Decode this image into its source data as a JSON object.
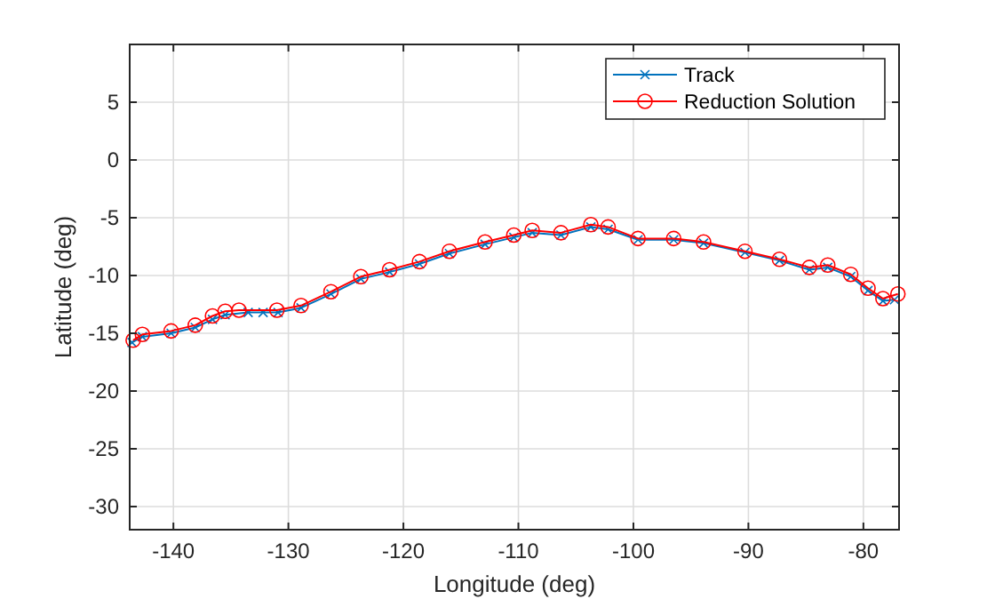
{
  "chart_data": {
    "type": "line",
    "xlabel": "Longitude (deg)",
    "ylabel": "Latitude (deg)",
    "xlim": [
      -143.8,
      -76.9
    ],
    "ylim": [
      -32,
      10
    ],
    "xticks": [
      -140,
      -130,
      -120,
      -110,
      -100,
      -90,
      -80
    ],
    "yticks": [
      -30,
      -25,
      -20,
      -15,
      -10,
      -5,
      0,
      5
    ],
    "grid": true,
    "legend": "top right",
    "series": [
      {
        "name": "Track",
        "color": "#0072bd",
        "marker": "cross",
        "x": [
          -143.6,
          -142.7,
          -140.2,
          -138.1,
          -136.6,
          -135.5,
          -133.5,
          -132.2,
          -130.9,
          -128.9,
          -126.3,
          -123.7,
          -121.2,
          -118.6,
          -116.0,
          -112.9,
          -110.4,
          -108.8,
          -106.3,
          -103.7,
          -102.2,
          -99.6,
          -96.5,
          -93.9,
          -90.3,
          -87.3,
          -84.7,
          -83.1,
          -81.1,
          -79.6,
          -78.3,
          -77.3
        ],
        "values": [
          -15.8,
          -15.3,
          -15.0,
          -14.5,
          -13.8,
          -13.4,
          -13.2,
          -13.2,
          -13.2,
          -12.8,
          -11.6,
          -10.3,
          -9.7,
          -9.0,
          -8.1,
          -7.3,
          -6.7,
          -6.3,
          -6.5,
          -5.8,
          -6.0,
          -6.9,
          -6.9,
          -7.2,
          -8.0,
          -8.7,
          -9.5,
          -9.3,
          -10.1,
          -11.3,
          -12.2,
          -12.1
        ]
      },
      {
        "name": "Reduction Solution",
        "color": "#ff0000",
        "marker": "circle",
        "x": [
          -143.5,
          -142.7,
          -140.2,
          -138.1,
          -136.6,
          -135.5,
          -134.3,
          -131.0,
          -128.9,
          -126.3,
          -123.7,
          -121.2,
          -118.6,
          -116.0,
          -112.9,
          -110.4,
          -108.8,
          -106.3,
          -103.7,
          -102.2,
          -99.6,
          -96.5,
          -93.9,
          -90.3,
          -87.3,
          -84.7,
          -83.1,
          -81.1,
          -79.6,
          -78.3,
          -77.0
        ],
        "values": [
          -15.6,
          -15.1,
          -14.8,
          -14.3,
          -13.5,
          -13.1,
          -13.0,
          -13.0,
          -12.6,
          -11.4,
          -10.1,
          -9.5,
          -8.8,
          -7.9,
          -7.1,
          -6.5,
          -6.1,
          -6.3,
          -5.6,
          -5.8,
          -6.8,
          -6.8,
          -7.1,
          -7.9,
          -8.6,
          -9.3,
          -9.1,
          -9.9,
          -11.1,
          -12.0,
          -11.6
        ]
      }
    ]
  }
}
